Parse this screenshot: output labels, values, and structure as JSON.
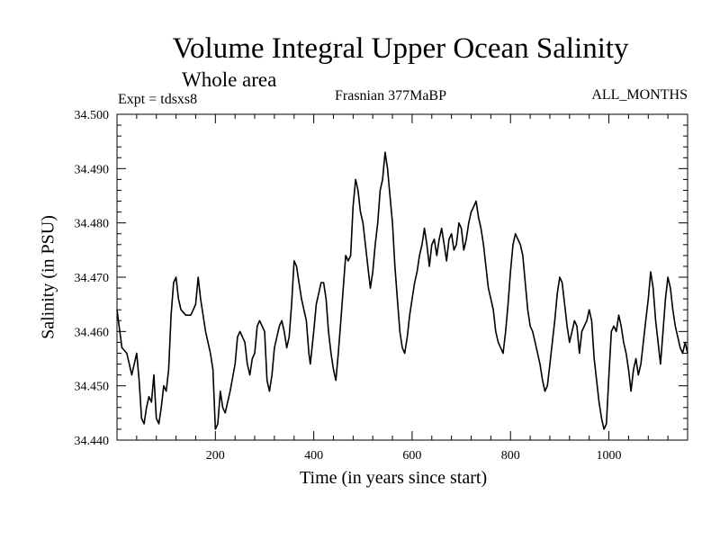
{
  "chart_data": {
    "type": "line",
    "title": "Volume Integral Upper Ocean Salinity",
    "subtitle": "Whole area",
    "annotations": {
      "left": "Expt = tdsxs8",
      "center": "Frasnian 377MaBP",
      "right": "ALL_MONTHS"
    },
    "xlabel": "Time (in years since start)",
    "ylabel": "Salinity (in PSU)",
    "xlim": [
      0,
      1160
    ],
    "ylim": [
      34.44,
      34.5
    ],
    "x_ticks": [
      200,
      400,
      600,
      800,
      1000
    ],
    "x_tick_labels": [
      "200",
      "400",
      "600",
      "800",
      "1000"
    ],
    "y_ticks": [
      34.44,
      34.45,
      34.46,
      34.47,
      34.48,
      34.49,
      34.5
    ],
    "y_tick_labels": [
      "34.440",
      "34.450",
      "34.460",
      "34.470",
      "34.480",
      "34.490",
      "34.500"
    ],
    "legend": "none",
    "grid": false,
    "series": [
      {
        "name": "Salinity",
        "color": "#000000",
        "points": [
          [
            0,
            34.464
          ],
          [
            10,
            34.457
          ],
          [
            20,
            34.456
          ],
          [
            30,
            34.452
          ],
          [
            40,
            34.456
          ],
          [
            45,
            34.451
          ],
          [
            50,
            34.444
          ],
          [
            55,
            34.443
          ],
          [
            60,
            34.446
          ],
          [
            65,
            34.448
          ],
          [
            70,
            34.447
          ],
          [
            75,
            34.452
          ],
          [
            80,
            34.444
          ],
          [
            85,
            34.443
          ],
          [
            90,
            34.446
          ],
          [
            95,
            34.45
          ],
          [
            100,
            34.449
          ],
          [
            105,
            34.453
          ],
          [
            110,
            34.463
          ],
          [
            115,
            34.469
          ],
          [
            120,
            34.47
          ],
          [
            125,
            34.466
          ],
          [
            130,
            34.464
          ],
          [
            140,
            34.463
          ],
          [
            150,
            34.463
          ],
          [
            160,
            34.465
          ],
          [
            165,
            34.47
          ],
          [
            170,
            34.466
          ],
          [
            180,
            34.46
          ],
          [
            190,
            34.456
          ],
          [
            195,
            34.453
          ],
          [
            200,
            34.442
          ],
          [
            205,
            34.443
          ],
          [
            210,
            34.449
          ],
          [
            215,
            34.446
          ],
          [
            220,
            34.445
          ],
          [
            230,
            34.449
          ],
          [
            240,
            34.454
          ],
          [
            245,
            34.459
          ],
          [
            250,
            34.46
          ],
          [
            260,
            34.458
          ],
          [
            265,
            34.454
          ],
          [
            270,
            34.452
          ],
          [
            275,
            34.455
          ],
          [
            280,
            34.456
          ],
          [
            285,
            34.461
          ],
          [
            290,
            34.462
          ],
          [
            300,
            34.46
          ],
          [
            305,
            34.451
          ],
          [
            310,
            34.449
          ],
          [
            315,
            34.452
          ],
          [
            320,
            34.457
          ],
          [
            330,
            34.461
          ],
          [
            335,
            34.462
          ],
          [
            340,
            34.46
          ],
          [
            345,
            34.457
          ],
          [
            350,
            34.459
          ],
          [
            355,
            34.465
          ],
          [
            360,
            34.473
          ],
          [
            365,
            34.472
          ],
          [
            370,
            34.469
          ],
          [
            375,
            34.466
          ],
          [
            380,
            34.464
          ],
          [
            385,
            34.462
          ],
          [
            390,
            34.456
          ],
          [
            393,
            34.454
          ],
          [
            400,
            34.46
          ],
          [
            405,
            34.465
          ],
          [
            410,
            34.467
          ],
          [
            415,
            34.469
          ],
          [
            420,
            34.469
          ],
          [
            425,
            34.466
          ],
          [
            430,
            34.46
          ],
          [
            435,
            34.456
          ],
          [
            440,
            34.453
          ],
          [
            445,
            34.451
          ],
          [
            450,
            34.456
          ],
          [
            455,
            34.462
          ],
          [
            460,
            34.468
          ],
          [
            465,
            34.474
          ],
          [
            470,
            34.473
          ],
          [
            475,
            34.474
          ],
          [
            480,
            34.483
          ],
          [
            485,
            34.488
          ],
          [
            490,
            34.486
          ],
          [
            495,
            34.482
          ],
          [
            500,
            34.48
          ],
          [
            505,
            34.476
          ],
          [
            510,
            34.472
          ],
          [
            515,
            34.468
          ],
          [
            520,
            34.471
          ],
          [
            525,
            34.476
          ],
          [
            530,
            34.48
          ],
          [
            535,
            34.486
          ],
          [
            540,
            34.488
          ],
          [
            545,
            34.493
          ],
          [
            550,
            34.49
          ],
          [
            555,
            34.485
          ],
          [
            560,
            34.48
          ],
          [
            565,
            34.472
          ],
          [
            570,
            34.466
          ],
          [
            575,
            34.46
          ],
          [
            580,
            34.457
          ],
          [
            585,
            34.456
          ],
          [
            590,
            34.459
          ],
          [
            595,
            34.463
          ],
          [
            600,
            34.466
          ],
          [
            605,
            34.469
          ],
          [
            610,
            34.471
          ],
          [
            615,
            34.474
          ],
          [
            620,
            34.476
          ],
          [
            625,
            34.479
          ],
          [
            630,
            34.476
          ],
          [
            635,
            34.472
          ],
          [
            640,
            34.476
          ],
          [
            645,
            34.477
          ],
          [
            650,
            34.474
          ],
          [
            655,
            34.477
          ],
          [
            660,
            34.479
          ],
          [
            665,
            34.476
          ],
          [
            670,
            34.473
          ],
          [
            675,
            34.477
          ],
          [
            680,
            34.478
          ],
          [
            685,
            34.475
          ],
          [
            690,
            34.476
          ],
          [
            695,
            34.48
          ],
          [
            700,
            34.479
          ],
          [
            705,
            34.475
          ],
          [
            710,
            34.477
          ],
          [
            715,
            34.48
          ],
          [
            720,
            34.482
          ],
          [
            725,
            34.483
          ],
          [
            730,
            34.484
          ],
          [
            735,
            34.481
          ],
          [
            740,
            34.479
          ],
          [
            745,
            34.476
          ],
          [
            750,
            34.472
          ],
          [
            755,
            34.468
          ],
          [
            760,
            34.466
          ],
          [
            765,
            34.464
          ],
          [
            770,
            34.46
          ],
          [
            775,
            34.458
          ],
          [
            780,
            34.457
          ],
          [
            785,
            34.456
          ],
          [
            790,
            34.46
          ],
          [
            795,
            34.465
          ],
          [
            800,
            34.471
          ],
          [
            805,
            34.476
          ],
          [
            810,
            34.478
          ],
          [
            815,
            34.477
          ],
          [
            820,
            34.476
          ],
          [
            825,
            34.474
          ],
          [
            830,
            34.469
          ],
          [
            835,
            34.464
          ],
          [
            840,
            34.461
          ],
          [
            845,
            34.46
          ],
          [
            850,
            34.458
          ],
          [
            855,
            34.456
          ],
          [
            860,
            34.454
          ],
          [
            865,
            34.451
          ],
          [
            870,
            34.449
          ],
          [
            875,
            34.45
          ],
          [
            880,
            34.454
          ],
          [
            885,
            34.458
          ],
          [
            890,
            34.462
          ],
          [
            895,
            34.467
          ],
          [
            900,
            34.47
          ],
          [
            905,
            34.469
          ],
          [
            910,
            34.465
          ],
          [
            915,
            34.461
          ],
          [
            920,
            34.458
          ],
          [
            925,
            34.46
          ],
          [
            930,
            34.462
          ],
          [
            935,
            34.461
          ],
          [
            940,
            34.456
          ],
          [
            945,
            34.46
          ],
          [
            950,
            34.461
          ],
          [
            955,
            34.462
          ],
          [
            960,
            34.464
          ],
          [
            965,
            34.462
          ],
          [
            970,
            34.455
          ],
          [
            975,
            34.451
          ],
          [
            980,
            34.447
          ],
          [
            985,
            34.444
          ],
          [
            990,
            34.442
          ],
          [
            995,
            34.443
          ],
          [
            1000,
            34.452
          ],
          [
            1005,
            34.46
          ],
          [
            1010,
            34.461
          ],
          [
            1015,
            34.46
          ],
          [
            1020,
            34.463
          ],
          [
            1025,
            34.461
          ],
          [
            1030,
            34.458
          ],
          [
            1035,
            34.456
          ],
          [
            1040,
            34.453
          ],
          [
            1045,
            34.449
          ],
          [
            1050,
            34.453
          ],
          [
            1055,
            34.455
          ],
          [
            1060,
            34.452
          ],
          [
            1065,
            34.454
          ],
          [
            1070,
            34.458
          ],
          [
            1075,
            34.462
          ],
          [
            1080,
            34.466
          ],
          [
            1085,
            34.471
          ],
          [
            1090,
            34.468
          ],
          [
            1095,
            34.462
          ],
          [
            1100,
            34.458
          ],
          [
            1105,
            34.454
          ],
          [
            1110,
            34.46
          ],
          [
            1115,
            34.466
          ],
          [
            1120,
            34.47
          ],
          [
            1125,
            34.468
          ],
          [
            1130,
            34.464
          ],
          [
            1135,
            34.461
          ],
          [
            1140,
            34.459
          ],
          [
            1145,
            34.457
          ],
          [
            1150,
            34.456
          ],
          [
            1155,
            34.458
          ],
          [
            1160,
            34.456
          ]
        ]
      }
    ]
  }
}
